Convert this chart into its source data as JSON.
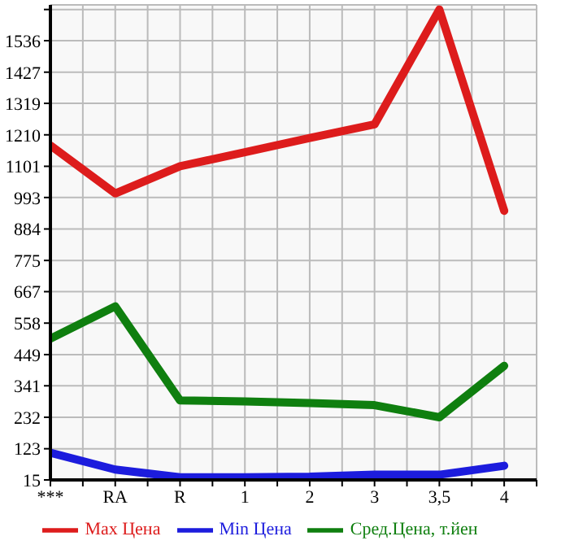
{
  "chart_data": {
    "type": "line",
    "categories": [
      "***",
      "RA",
      "R",
      "1",
      "2",
      "3",
      "3,5",
      "4"
    ],
    "series": [
      {
        "name": "Max Цена",
        "color": "#dd1c1c",
        "values": [
          1173,
          1007,
          1101,
          1150,
          1199,
          1246,
          1644,
          947
        ]
      },
      {
        "name": "Min Цена",
        "color": "#1c1cdd",
        "values": [
          109,
          51,
          24,
          24,
          26,
          33,
          33,
          64
        ]
      },
      {
        "name": "Сред.Цена, т.йен",
        "color": "#0f7f0f",
        "values": [
          504,
          616,
          290,
          287,
          281,
          274,
          232,
          410
        ]
      }
    ],
    "ylim": [
      15,
      1660
    ],
    "yticks": [
      15,
      123,
      232,
      341,
      449,
      558,
      667,
      775,
      884,
      993,
      1101,
      1210,
      1319,
      1427,
      1536,
      {
        "value": 1644,
        "label": null
      }
    ],
    "grid": true,
    "legend": "bottom",
    "marker": "none",
    "line_style": "solid"
  }
}
